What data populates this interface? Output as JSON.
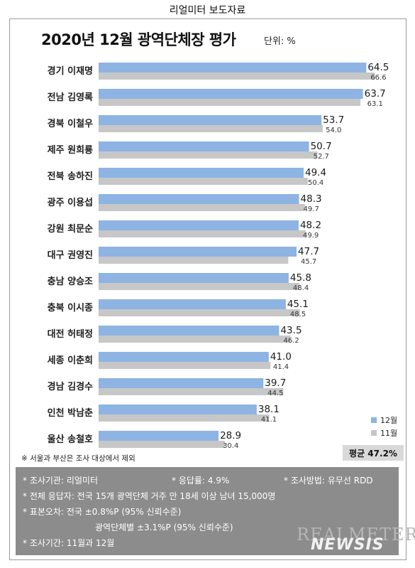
{
  "header": {
    "caption": "리얼미터 보도자료"
  },
  "chart_data": {
    "type": "bar",
    "orientation": "horizontal",
    "title": "2020년 12월 광역단체장 평가",
    "unit": "단위: %",
    "categories": [
      "경기 이재명",
      "전남 김영록",
      "경북 이철우",
      "제주 원희룡",
      "전북 송하진",
      "광주 이용섭",
      "강원 최문순",
      "대구 권영진",
      "충남 양승조",
      "충북 이시종",
      "대전 허태정",
      "세종 이춘희",
      "경남 김경수",
      "인천 박남춘",
      "울산 송철호"
    ],
    "series": [
      {
        "name": "12월",
        "color": "#8db4e2",
        "values": [
          64.5,
          63.7,
          53.7,
          50.7,
          49.4,
          48.3,
          48.2,
          47.7,
          45.8,
          45.1,
          43.5,
          41.0,
          39.7,
          38.1,
          28.9
        ]
      },
      {
        "name": "11월",
        "color": "#c7c7c7",
        "values": [
          66.6,
          63.1,
          54.0,
          52.7,
          50.4,
          49.7,
          49.9,
          45.7,
          48.4,
          48.5,
          46.2,
          41.4,
          44.5,
          41.1,
          30.4
        ]
      }
    ],
    "legend_position": "bottom-right",
    "average_label": "평균 47.2%"
  },
  "footnote": "※ 서울과 부산은 조사 대상에서 제외",
  "info": {
    "org": "* 조사기관: 리얼미터",
    "response_rate": "* 응답률: 4.9%",
    "method": "* 조사방법: 유무선 RDD",
    "respondents": "* 전체 응답자: 전국 15개 광역단체 거주 만 18세 이상 남녀 15,000명",
    "error_national": "* 표본오차: 전국 ±0.8%P (95% 신뢰수준)",
    "error_region": "광역단체별 ±3.1%P (95% 신뢰수준)",
    "period": "* 조사기간: 11월과 12월"
  },
  "watermark": "REALMETER",
  "newsis": "NEWSIS"
}
